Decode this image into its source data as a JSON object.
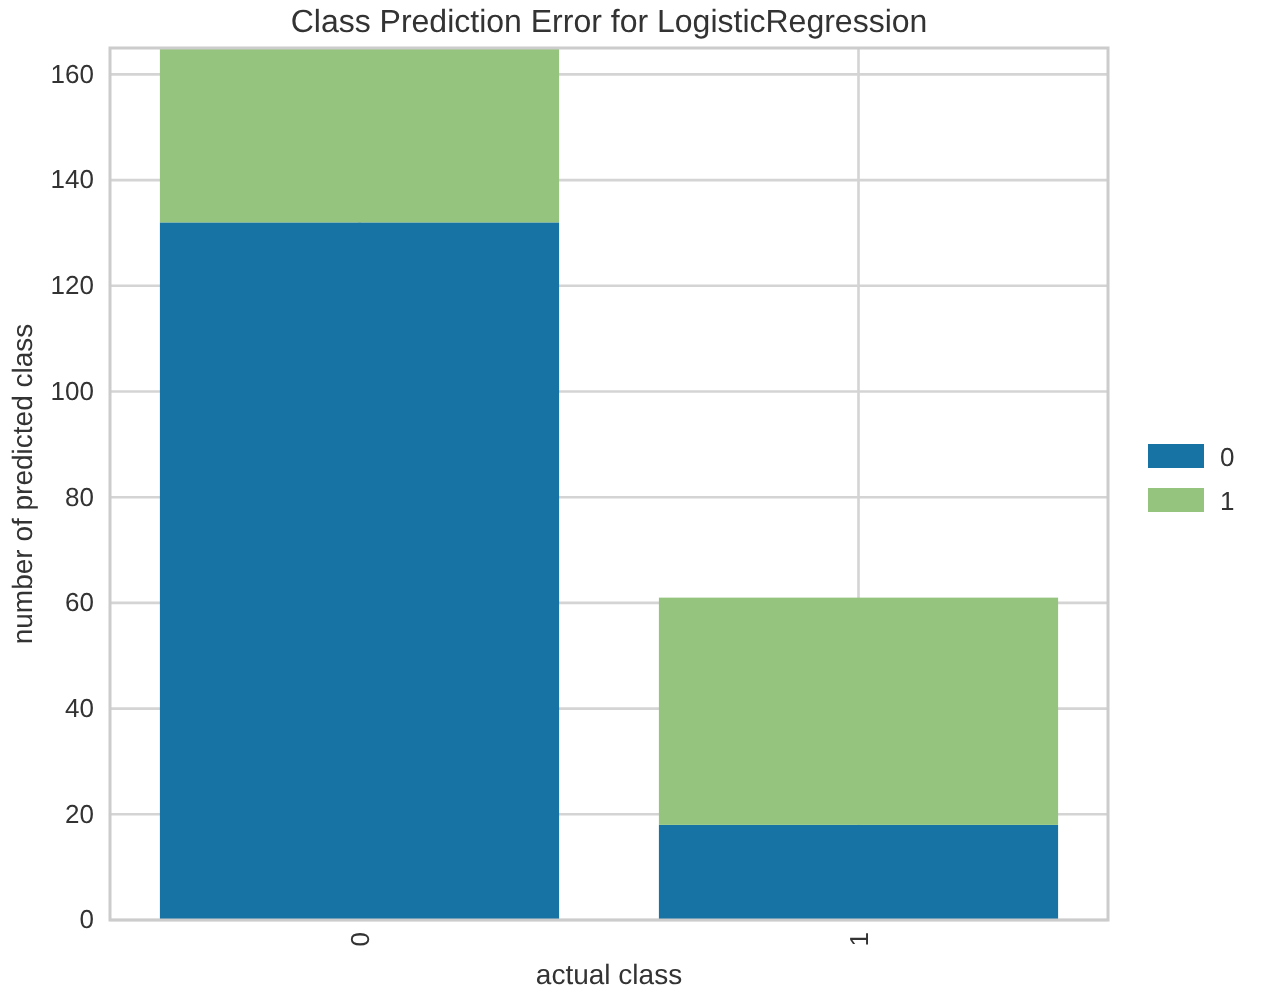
{
  "chart_data": {
    "type": "bar",
    "title": "Class Prediction Error for LogisticRegression",
    "xlabel": "actual class",
    "ylabel": "number of predicted class",
    "categories": [
      "0",
      "1"
    ],
    "stacked": true,
    "series": [
      {
        "name": "0",
        "color": "#1673a3",
        "values": [
          132,
          18
        ]
      },
      {
        "name": "1",
        "color": "#94c47d",
        "values": [
          33,
          43
        ]
      }
    ],
    "ylim": [
      0,
      165
    ],
    "yticks": [
      0,
      20,
      40,
      60,
      80,
      100,
      120,
      140,
      160
    ],
    "grid": true,
    "legend": "right"
  }
}
